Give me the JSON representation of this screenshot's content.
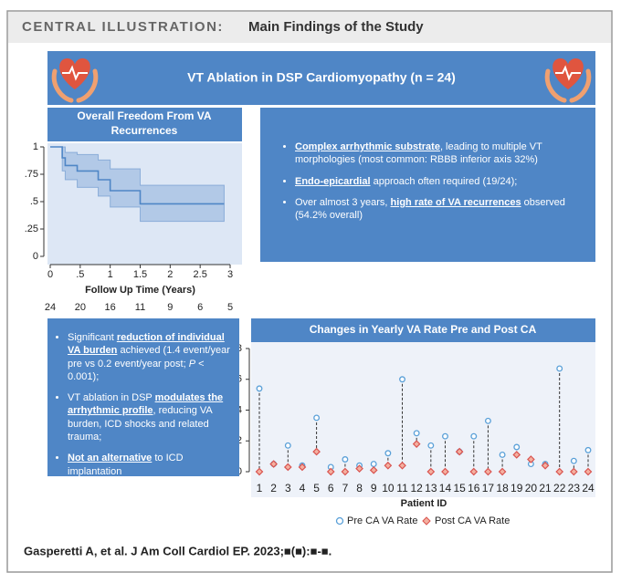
{
  "header": {
    "label": "CENTRAL ILLUSTRATION:",
    "title": "Main Findings of the Study"
  },
  "banner": "VT Ablation in DSP Cardiomyopathy (n = 24)",
  "findings": [
    [
      {
        "text": "Complex arrhythmic substrate",
        "underline": true
      },
      {
        "text": ", leading to multiple VT morphologies (most common: RBBB inferior axis 32%)"
      }
    ],
    [
      {
        "text": "Endo-epicardial",
        "underline": true
      },
      {
        "text": " approach often required (19/24);"
      }
    ],
    [
      {
        "text": "Over almost 3 years, "
      },
      {
        "text": "high rate of VA recurrences",
        "underline": true
      },
      {
        "text": " observed (54.2% overall)"
      }
    ]
  ],
  "conclusions": [
    [
      {
        "text": "Significant "
      },
      {
        "text": "reduction of individual VA burden",
        "underline": true
      },
      {
        "text": " achieved (1.4 event/year pre vs 0.2 event/year post; "
      },
      {
        "text": "P",
        "italic": true
      },
      {
        "text": " < 0.001);"
      }
    ],
    [
      {
        "text": "VT ablation in DSP "
      },
      {
        "text": "modulates the arrhythmic profile",
        "underline": true
      },
      {
        "text": ", reducing VA burden, ICD shocks and related trauma;"
      }
    ],
    [
      {
        "text": "Not an alternative",
        "underline": true
      },
      {
        "text": " to ICD implantation"
      }
    ]
  ],
  "citation": "Gasperetti A, et al. J Am Coll Cardiol EP. 2023;■(■):■-■.",
  "chart_data": [
    {
      "type": "step",
      "title": "Overall Freedom From VA Recurrences",
      "x_label": "Follow Up Time (Years)",
      "x": [
        0,
        0.2,
        0.25,
        0.45,
        0.8,
        1.0,
        1.5,
        2.9
      ],
      "values": [
        1,
        0.9,
        0.83,
        0.78,
        0.7,
        0.6,
        0.48,
        0.48
      ],
      "ci_lower": [
        1,
        0.78,
        0.7,
        0.63,
        0.55,
        0.45,
        0.32,
        0.32
      ],
      "ci_upper": [
        1,
        1,
        0.95,
        0.93,
        0.88,
        0.8,
        0.65,
        0.65
      ],
      "color": "#4f86c6",
      "xlim": [
        0,
        3
      ],
      "ylim": [
        0,
        1
      ],
      "xticks": [
        0,
        {
          "value": 0.5,
          "label": ".5"
        },
        1,
        1.5,
        2,
        2.5,
        3
      ],
      "yticks": [
        0,
        {
          "value": 0.25,
          "label": ".25"
        },
        {
          "value": 0.5,
          "label": ".5"
        },
        {
          "value": 0.75,
          "label": ".75"
        },
        1
      ],
      "at_risk": [
        24,
        20,
        16,
        11,
        9,
        6,
        5
      ]
    },
    {
      "type": "dot-pair",
      "title": "Changes in Yearly VA Rate Pre and Post CA",
      "x_label": "Patient ID",
      "categories": [
        1,
        2,
        3,
        4,
        5,
        6,
        7,
        8,
        9,
        10,
        11,
        12,
        13,
        14,
        15,
        16,
        17,
        18,
        19,
        20,
        21,
        22,
        23,
        24
      ],
      "series": [
        {
          "name": "Pre CA VA Rate",
          "color": "#5aa0d8",
          "values": [
            5.4,
            0.5,
            1.7,
            0.4,
            3.5,
            0.3,
            0.8,
            0.4,
            0.5,
            1.2,
            6.0,
            2.5,
            1.7,
            2.3,
            1.3,
            2.3,
            3.3,
            1.1,
            1.6,
            0.5,
            0.5,
            6.7,
            0.7,
            1.4
          ]
        },
        {
          "name": "Post CA VA Rate",
          "color": "#d9534f",
          "values": [
            0,
            0.5,
            0.3,
            0.3,
            1.3,
            0,
            0,
            0.2,
            0.1,
            0.4,
            0.4,
            1.8,
            0,
            0,
            1.3,
            0,
            0,
            0,
            1.1,
            0.8,
            0.4,
            0,
            0,
            0
          ]
        }
      ],
      "ylim": [
        0,
        8
      ],
      "yticks": [
        0,
        2,
        4,
        6,
        8
      ]
    }
  ]
}
